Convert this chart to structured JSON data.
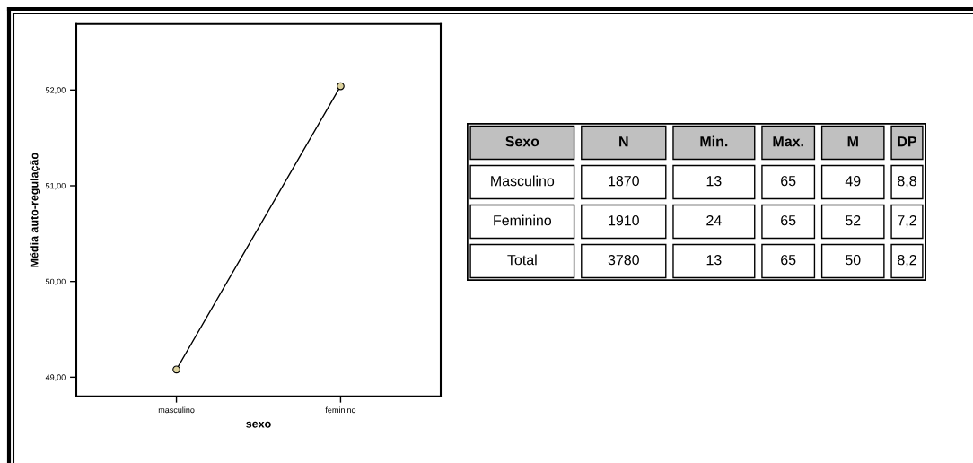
{
  "chart_data": [
    {
      "type": "line",
      "xlabel": "sexo",
      "ylabel": "Média auto-regulação",
      "categories": [
        "masculino",
        "feminino"
      ],
      "series": [
        {
          "color": "#000000",
          "colors": [
            "#dcd29e",
            "#dcd29e"
          ],
          "values": [
            49.08,
            52.04
          ]
        }
      ],
      "ylim": [
        48.8,
        52.69
      ],
      "yticks": [
        {
          "value": 49,
          "label": "49,00"
        },
        {
          "value": 50,
          "label": "50,00"
        },
        {
          "value": 51,
          "label": "51,00"
        },
        {
          "value": 52,
          "label": "52,00"
        }
      ],
      "marker": "circle",
      "line_style": "solid",
      "grid": false,
      "legend": false
    },
    {
      "type": "other",
      "categories": [
        "Sexo",
        "N",
        "Min.",
        "Max.",
        "M",
        "DP"
      ],
      "annotations": [
        "Masculino",
        "1870",
        "13",
        "65",
        "49",
        "8,8",
        "Feminino",
        "1910",
        "24",
        "65",
        "52",
        "7,2",
        "Total",
        "3780",
        "13",
        "65",
        "50",
        "8,2"
      ]
    }
  ]
}
